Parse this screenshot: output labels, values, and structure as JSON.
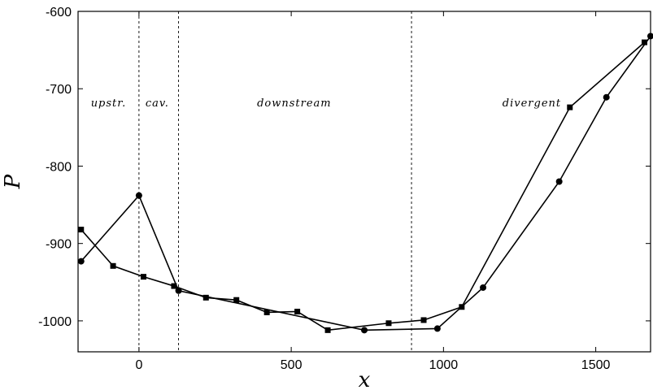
{
  "chart_data": {
    "type": "line",
    "title": "",
    "xlabel": "x",
    "ylabel": "P",
    "xlim": [
      -200,
      1680
    ],
    "ylim": [
      -1040,
      -600
    ],
    "x_ticks": [
      0,
      500,
      1000,
      1500
    ],
    "y_ticks": [
      -600,
      -700,
      -800,
      -900,
      -1000
    ],
    "grid": false,
    "legend": "none",
    "region_boundaries": [
      0,
      130,
      895
    ],
    "region_labels": [
      {
        "text": "upstr.",
        "x": -100
      },
      {
        "text": "cav.",
        "x": 60
      },
      {
        "text": "downstream",
        "x": 510
      },
      {
        "text": "divergent",
        "x": 1290
      }
    ],
    "series": [
      {
        "marker": "circle",
        "points": [
          [
            -190,
            -923
          ],
          [
            0,
            -838
          ],
          [
            130,
            -961
          ],
          [
            740,
            -1012
          ],
          [
            980,
            -1010
          ],
          [
            1130,
            -957
          ],
          [
            1380,
            -820
          ],
          [
            1535,
            -711
          ],
          [
            1680,
            -632
          ]
        ]
      },
      {
        "marker": "square",
        "points": [
          [
            -190,
            -882
          ],
          [
            -85,
            -929
          ],
          [
            15,
            -943
          ],
          [
            115,
            -955
          ],
          [
            220,
            -970
          ],
          [
            320,
            -973
          ],
          [
            420,
            -989
          ],
          [
            520,
            -988
          ],
          [
            620,
            -1012
          ],
          [
            820,
            -1003
          ],
          [
            935,
            -999
          ],
          [
            1060,
            -982
          ],
          [
            1415,
            -724
          ],
          [
            1660,
            -640
          ]
        ]
      }
    ]
  }
}
